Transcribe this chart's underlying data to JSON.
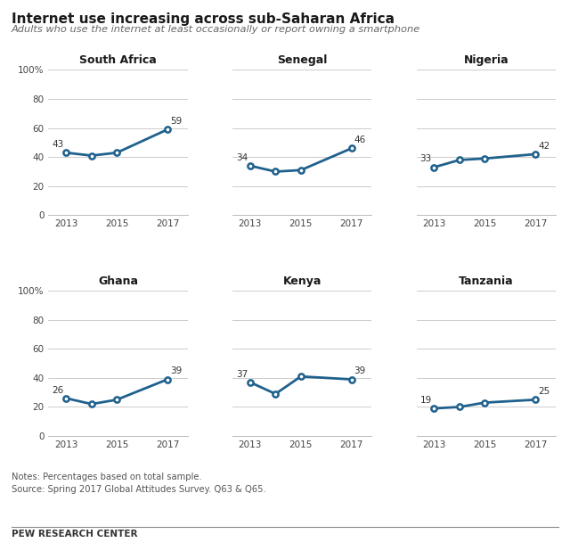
{
  "title": "Internet use increasing across sub-Saharan Africa",
  "subtitle": "Adults who use the internet at least occasionally or report owning a smartphone",
  "notes": "Notes: Percentages based on total sample.\nSource: Spring 2017 Global Attitudes Survey. Q63 & Q65.",
  "footer": "PEW RESEARCH CENTER",
  "bg_color": "#ffffff",
  "line_color": "#1f618d",
  "years": [
    2013,
    2014,
    2015,
    2017
  ],
  "countries": [
    "South Africa",
    "Senegal",
    "Nigeria",
    "Ghana",
    "Kenya",
    "Tanzania"
  ],
  "data": {
    "South Africa": [
      43,
      41,
      43,
      59
    ],
    "Senegal": [
      34,
      30,
      31,
      46
    ],
    "Nigeria": [
      33,
      38,
      39,
      42
    ],
    "Ghana": [
      26,
      22,
      25,
      39
    ],
    "Kenya": [
      37,
      29,
      41,
      39
    ],
    "Tanzania": [
      19,
      20,
      23,
      25
    ]
  },
  "label_first": {
    "South Africa": 43,
    "Senegal": 34,
    "Nigeria": 33,
    "Ghana": 26,
    "Kenya": 37,
    "Tanzania": 19
  },
  "label_last": {
    "South Africa": 59,
    "Senegal": 46,
    "Nigeria": 42,
    "Ghana": 39,
    "Kenya": 39,
    "Tanzania": 25
  },
  "ylim": [
    0,
    100
  ],
  "yticks": [
    0,
    20,
    40,
    60,
    80,
    100
  ],
  "ytick_labels_left": [
    "0",
    "20",
    "40",
    "60",
    "80",
    "100%"
  ],
  "ytick_labels_other": [
    "",
    "",
    "",
    "",
    "",
    ""
  ]
}
